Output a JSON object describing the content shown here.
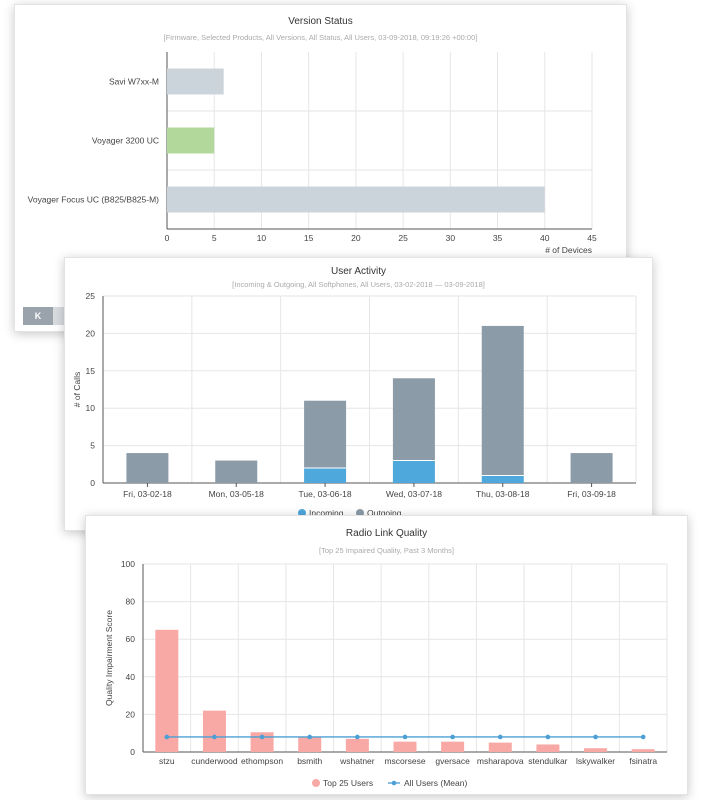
{
  "version_status": {
    "title": "Version Status",
    "subtitle": "[Firmware, Selected Products, All Versions, All Status, All Users, 03-09-2018, 09:19:26 +00:00]",
    "nav_button_label": "K"
  },
  "user_activity": {
    "title": "User Activity",
    "subtitle": "[Incoming & Outgoing, All Softphones, All Users, 03-02-2018 — 03-09-2018]"
  },
  "radio_link": {
    "title": "Radio Link Quality",
    "subtitle": "[Top 25 Impaired Quality, Past 3 Months]"
  },
  "colors": {
    "grey_bar": "#ccd4db",
    "green_bar": "#b3d89c",
    "incoming": "#4fa8dc",
    "outgoing": "#8c9ba8",
    "top25": "#f8a8a5",
    "mean": "#4b9fd5",
    "grid": "#e6e6e6"
  },
  "chart_data": [
    {
      "type": "bar",
      "orientation": "horizontal",
      "title": "Version Status",
      "categories": [
        "Savi W7xx-M",
        "Voyager 3200 UC",
        "Voyager Focus UC (B825/B825-M)"
      ],
      "values": [
        6,
        5,
        40
      ],
      "bar_colors": [
        "#ccd4db",
        "#b3d89c",
        "#ccd4db"
      ],
      "xlabel": "# of Devices",
      "xlim": [
        0,
        45
      ],
      "xticks": [
        0,
        5,
        10,
        15,
        20,
        25,
        30,
        35,
        40,
        45
      ],
      "grid": true
    },
    {
      "type": "bar",
      "stacked": true,
      "title": "User Activity",
      "categories": [
        "Fri, 03-02-18",
        "Mon, 03-05-18",
        "Tue, 03-06-18",
        "Wed, 03-07-18",
        "Thu, 03-08-18",
        "Fri, 03-09-18"
      ],
      "series": [
        {
          "name": "Incoming",
          "values": [
            0,
            0,
            2,
            3,
            1,
            0
          ]
        },
        {
          "name": "Outgoing",
          "values": [
            4,
            3,
            9,
            11,
            20,
            4
          ]
        }
      ],
      "ylabel": "# of Calls",
      "ylim": [
        0,
        25
      ],
      "yticks": [
        0,
        5,
        10,
        15,
        20,
        25
      ],
      "legend": "bottom",
      "grid": true
    },
    {
      "type": "bar",
      "title": "Radio Link Quality",
      "categories": [
        "stzu",
        "cunderwood",
        "ethompson",
        "bsmith",
        "wshatner",
        "mscorsese",
        "gversace",
        "msharapova",
        "stendulkar",
        "lskywalker",
        "fsinatra"
      ],
      "series": [
        {
          "name": "Top 25 Users",
          "type": "bar",
          "values": [
            65,
            22,
            10.5,
            8,
            7,
            5.5,
            5.5,
            5,
            4,
            2,
            1.5
          ]
        },
        {
          "name": "All Users (Mean)",
          "type": "line",
          "values": [
            8,
            8,
            8,
            8,
            8,
            8,
            8,
            8,
            8,
            8,
            8
          ]
        }
      ],
      "ylabel": "Quality Impairment Score",
      "ylim": [
        0,
        100
      ],
      "yticks": [
        0,
        20,
        40,
        60,
        80,
        100
      ],
      "legend": "bottom",
      "grid": true
    }
  ]
}
